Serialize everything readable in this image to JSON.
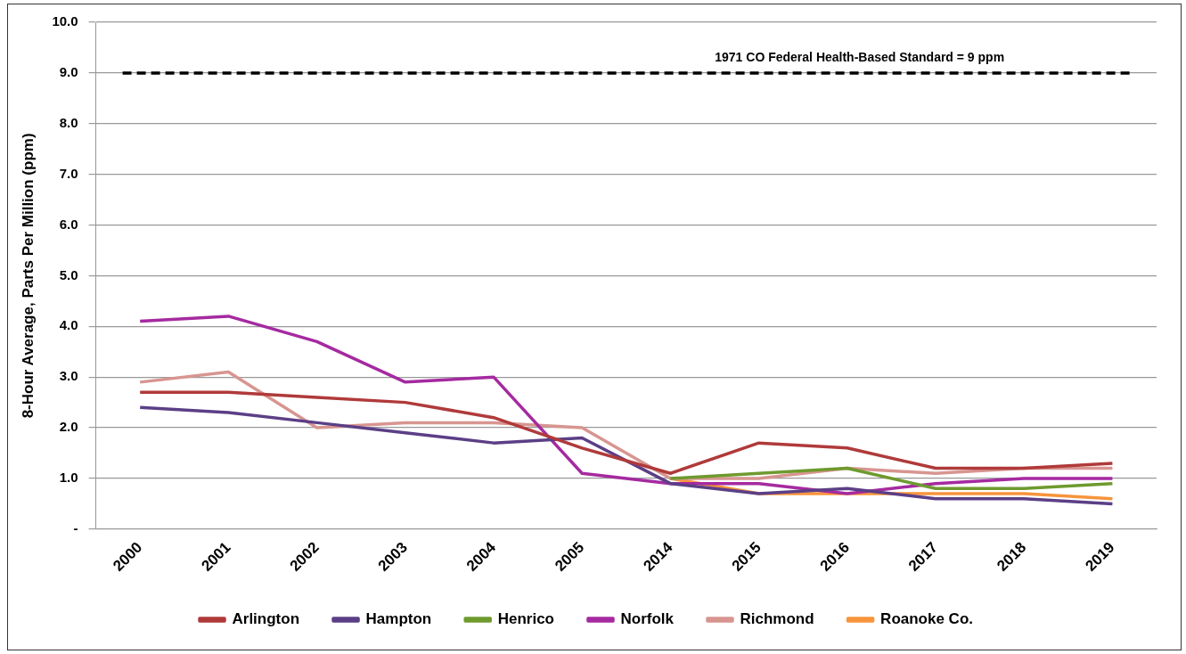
{
  "chart_data": {
    "type": "line",
    "ylabel": "8-Hour Average, Parts Per Million (ppm)",
    "categories": [
      "2000",
      "2001",
      "2002",
      "2003",
      "2004",
      "2005",
      "2014",
      "2015",
      "2016",
      "2017",
      "2018",
      "2019"
    ],
    "series": [
      {
        "name": "Arlington",
        "color": "#b03a3a",
        "values": [
          2.7,
          2.7,
          2.6,
          2.5,
          2.2,
          1.6,
          1.1,
          1.7,
          1.6,
          1.2,
          1.2,
          1.3
        ]
      },
      {
        "name": "Hampton",
        "color": "#5b3f86",
        "values": [
          2.4,
          2.3,
          2.1,
          1.9,
          1.7,
          1.8,
          0.9,
          0.7,
          0.8,
          0.6,
          0.6,
          0.5
        ]
      },
      {
        "name": "Henrico",
        "color": "#6e9a2e",
        "values": [
          null,
          null,
          null,
          null,
          null,
          null,
          1.0,
          1.1,
          1.2,
          0.8,
          0.8,
          0.9
        ]
      },
      {
        "name": "Norfolk",
        "color": "#a52aa0",
        "values": [
          4.1,
          4.2,
          3.7,
          2.9,
          3.0,
          1.1,
          0.9,
          0.9,
          0.7,
          0.9,
          1.0,
          1.0
        ]
      },
      {
        "name": "Richmond",
        "color": "#d89590",
        "values": [
          2.9,
          3.1,
          2.0,
          2.1,
          2.1,
          2.0,
          1.0,
          1.0,
          1.2,
          1.1,
          1.2,
          1.2
        ]
      },
      {
        "name": "Roanoke Co.",
        "color": "#f7943c",
        "values": [
          null,
          null,
          null,
          null,
          null,
          null,
          1.0,
          0.7,
          0.7,
          0.7,
          0.7,
          0.6
        ]
      }
    ],
    "ylim": [
      0,
      10
    ],
    "yticks": [
      {
        "value": 0,
        "label": "-"
      },
      {
        "value": 1,
        "label": "1.0"
      },
      {
        "value": 2,
        "label": "2.0"
      },
      {
        "value": 3,
        "label": "3.0"
      },
      {
        "value": 4,
        "label": "4.0"
      },
      {
        "value": 5,
        "label": "5.0"
      },
      {
        "value": 6,
        "label": "6.0"
      },
      {
        "value": 7,
        "label": "7.0"
      },
      {
        "value": 8,
        "label": "8.0"
      },
      {
        "value": 9,
        "label": "9.0"
      },
      {
        "value": 10,
        "label": "10.0"
      }
    ],
    "ref_lines": [
      {
        "axis": "y",
        "value": 9,
        "label": "1971 CO Federal Health-Based Standard = 9 ppm",
        "color": "#000000",
        "line_style": "dashed"
      }
    ],
    "grid": "y",
    "legend": "bottom",
    "marker": "none",
    "line_style": "solid"
  }
}
